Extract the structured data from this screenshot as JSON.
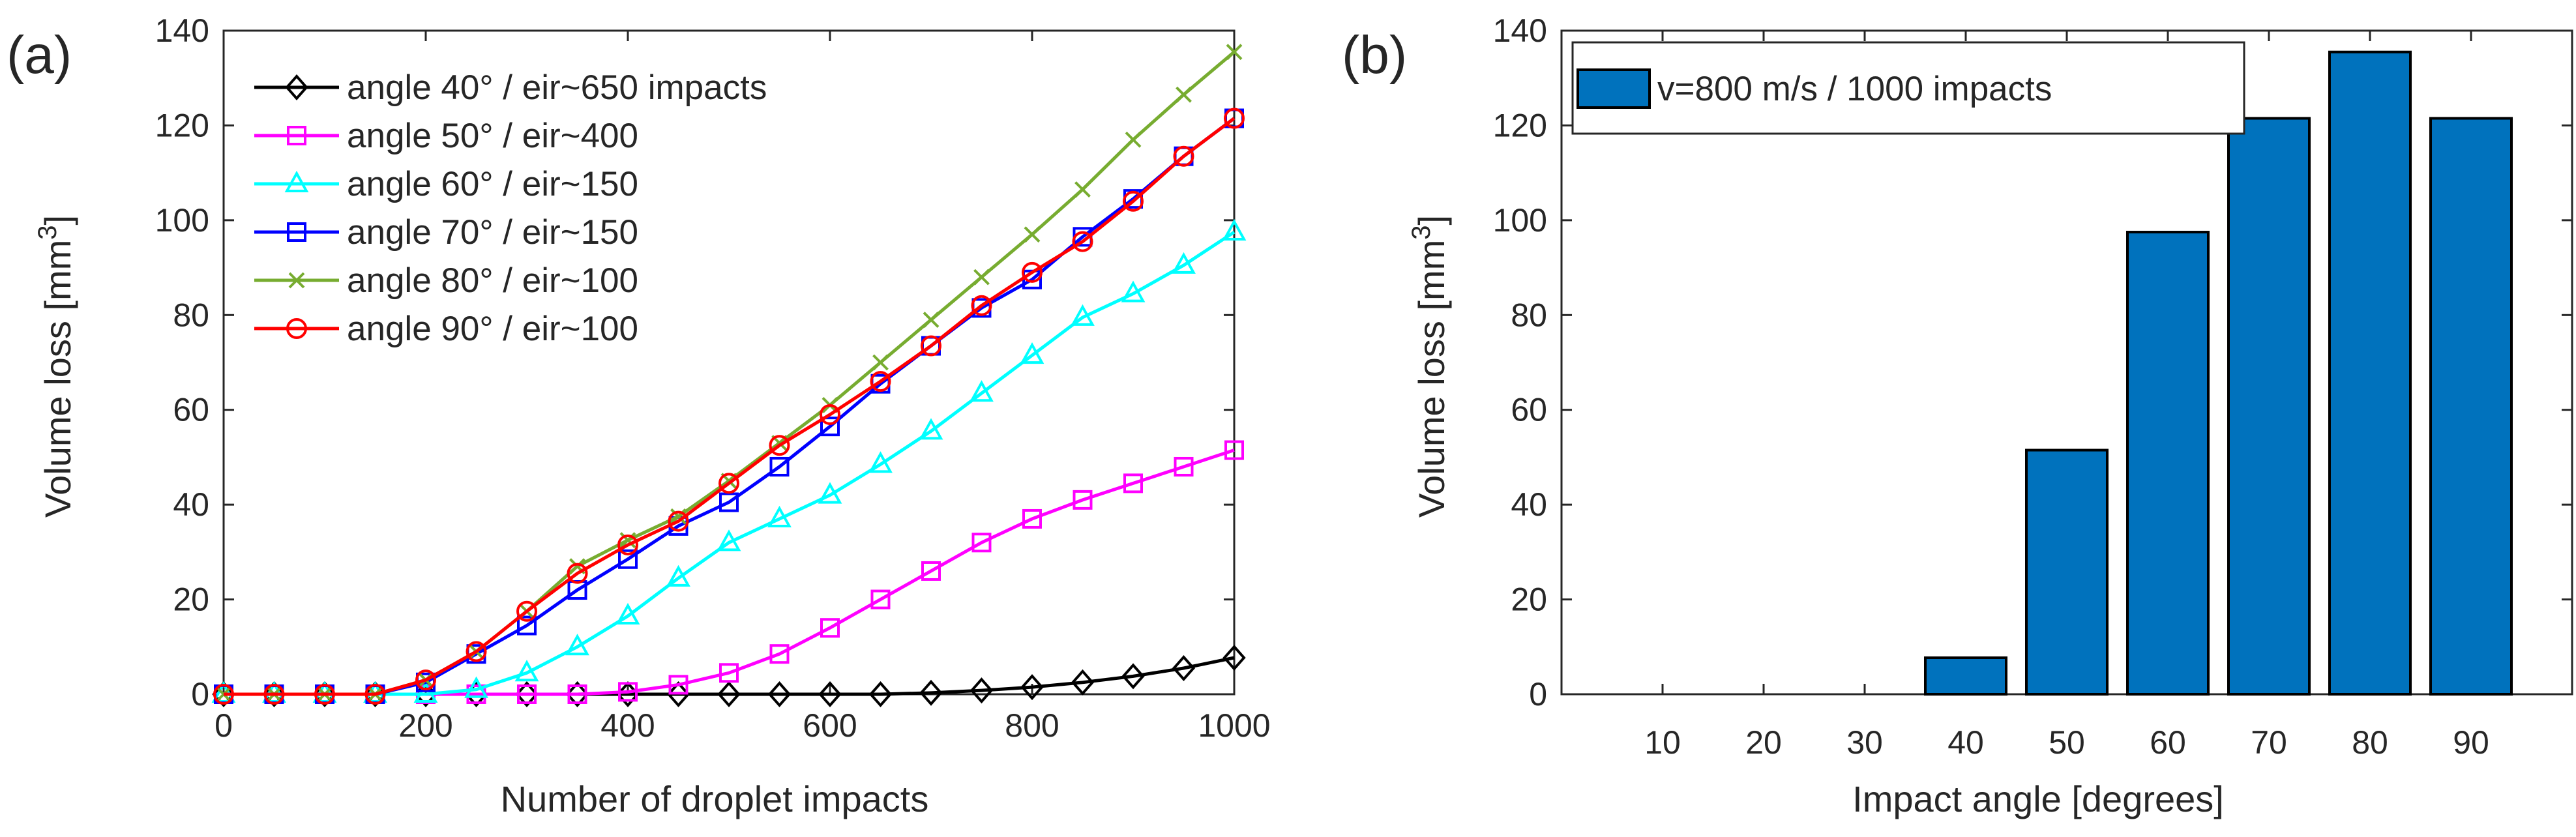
{
  "chart_data": [
    {
      "panel_label": "(a)",
      "type": "line",
      "title": "",
      "xlabel": "Number of droplet impacts",
      "ylabel": "Volume loss [mm",
      "ylabel_sup": "3",
      "ylabel_end": "]",
      "xlim": [
        0,
        1000
      ],
      "ylim": [
        0,
        140
      ],
      "xticks": [
        "0",
        "200",
        "400",
        "600",
        "800",
        "1000"
      ],
      "yticks": [
        "0",
        "20",
        "40",
        "60",
        "80",
        "100",
        "120",
        "140"
      ],
      "grid": false,
      "legend_position": "top-left",
      "x": [
        0,
        50,
        100,
        150,
        200,
        250,
        300,
        350,
        400,
        450,
        500,
        550,
        600,
        650,
        700,
        750,
        800,
        850,
        900,
        950,
        1000
      ],
      "series": [
        {
          "name": "angle 40° / eir~650 impacts",
          "color": "#000000",
          "marker": "diamond",
          "values": [
            0,
            0,
            0,
            0,
            0,
            0,
            0,
            0,
            0,
            0,
            0,
            0,
            0,
            0,
            0.3,
            0.8,
            1.5,
            2.5,
            3.8,
            5.5,
            7.7
          ]
        },
        {
          "name": "angle 50° / eir~400",
          "color": "#ff00ff",
          "marker": "square",
          "values": [
            0,
            0,
            0,
            0,
            0,
            0,
            0,
            0,
            0.5,
            2,
            4.5,
            8.5,
            14,
            20,
            26,
            32,
            37,
            41,
            44.5,
            48,
            51.5
          ]
        },
        {
          "name": "angle 60° / eir~150",
          "color": "#00ffff",
          "marker": "triangle",
          "values": [
            0,
            0,
            0,
            0,
            0,
            1,
            4.5,
            10,
            16.5,
            24.5,
            32,
            37,
            42,
            48.5,
            55.5,
            63.5,
            71.5,
            79.5,
            84.5,
            90.5,
            97.5
          ]
        },
        {
          "name": "angle 70° / eir~150",
          "color": "#0000ff",
          "marker": "square",
          "values": [
            0,
            0,
            0,
            0,
            2.5,
            8.5,
            14.5,
            22,
            28.5,
            35.5,
            40.5,
            48,
            56.5,
            65.5,
            73.5,
            81.5,
            87.5,
            96.5,
            104.5,
            113.5,
            121.5
          ]
        },
        {
          "name": "angle 80° / eir~100",
          "color": "#77ac30",
          "marker": "x",
          "values": [
            0,
            0,
            0,
            0,
            3,
            9,
            17.5,
            27,
            32.5,
            37.5,
            45,
            53,
            61,
            70,
            79,
            88,
            97,
            106.5,
            117,
            126.5,
            135.5
          ]
        },
        {
          "name": "angle 90° / eir~100",
          "color": "#ff0000",
          "marker": "circle",
          "values": [
            0,
            0,
            0,
            0,
            3,
            9,
            17.5,
            25.5,
            31.5,
            36.5,
            44.5,
            52.5,
            59,
            66,
            73.5,
            82,
            89,
            95.5,
            104,
            113.5,
            121.5
          ]
        }
      ]
    },
    {
      "panel_label": "(b)",
      "type": "bar",
      "title": "",
      "xlabel": "Impact angle [degrees]",
      "ylabel": "Volume loss [mm",
      "ylabel_sup": "3",
      "ylabel_end": "]",
      "xlim": [
        0,
        100
      ],
      "ylim": [
        0,
        140
      ],
      "categories": [
        "10",
        "20",
        "30",
        "40",
        "50",
        "60",
        "70",
        "80",
        "90"
      ],
      "category_values": [
        10,
        20,
        30,
        40,
        50,
        60,
        70,
        80,
        90
      ],
      "values": [
        0,
        0,
        0,
        7.7,
        51.5,
        97.5,
        121.5,
        135.5,
        121.5
      ],
      "yticks": [
        "0",
        "20",
        "40",
        "60",
        "80",
        "100",
        "120",
        "140"
      ],
      "bar_color": "#0072bd",
      "grid": false,
      "legend_position": "top-left",
      "legend": "v=800 m/s / 1000 impacts"
    }
  ]
}
